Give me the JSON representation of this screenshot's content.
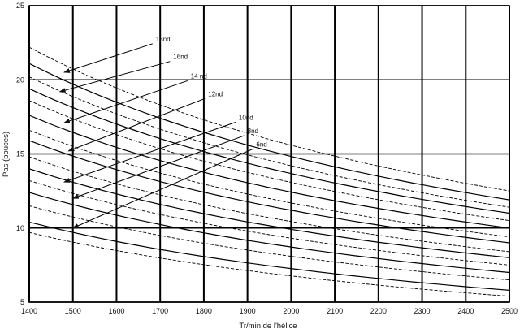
{
  "chart_data": {
    "type": "line",
    "title": "",
    "xlabel": "Tr/min de l'hélice",
    "ylabel": "Pas (pouces)",
    "xlim": [
      1400,
      2500
    ],
    "ylim": [
      5,
      25
    ],
    "xticks": [
      1400,
      1500,
      1600,
      1700,
      1800,
      1900,
      2000,
      2100,
      2200,
      2300,
      2400,
      2500
    ],
    "yticks": [
      5,
      10,
      15,
      20,
      25
    ],
    "grid": true,
    "legend": "none",
    "series": [
      {
        "values": [
          [
            1400,
            9.7
          ],
          [
            2500,
            5.4
          ]
        ],
        "style": "dashed"
      },
      {
        "values": [
          [
            1400,
            10.4
          ],
          [
            2500,
            5.8
          ]
        ],
        "style": "solid"
      },
      {
        "values": [
          [
            1400,
            11.5
          ],
          [
            2500,
            6.5
          ]
        ],
        "style": "dashed"
      },
      {
        "values": [
          [
            1400,
            12.4
          ],
          [
            2500,
            7.0
          ]
        ],
        "style": "solid"
      },
      {
        "values": [
          [
            1400,
            13.2
          ],
          [
            2500,
            7.5
          ]
        ],
        "style": "dashed"
      },
      {
        "values": [
          [
            1400,
            14.0
          ],
          [
            2500,
            8.0
          ]
        ],
        "style": "solid"
      },
      {
        "values": [
          [
            1400,
            14.8
          ],
          [
            2500,
            8.4
          ]
        ],
        "style": "dashed"
      },
      {
        "values": [
          [
            1400,
            15.9
          ],
          [
            2500,
            9.0
          ]
        ],
        "style": "solid"
      },
      {
        "values": [
          [
            1400,
            16.6
          ],
          [
            2500,
            9.4
          ]
        ],
        "style": "dashed"
      },
      {
        "values": [
          [
            1400,
            17.6
          ],
          [
            2500,
            10.0
          ]
        ],
        "style": "solid"
      },
      {
        "values": [
          [
            1400,
            18.6
          ],
          [
            2500,
            10.5
          ]
        ],
        "style": "dashed"
      },
      {
        "values": [
          [
            1400,
            19.4
          ],
          [
            2500,
            11.0
          ]
        ],
        "style": "solid"
      },
      {
        "values": [
          [
            1400,
            20.2
          ],
          [
            2500,
            11.4
          ]
        ],
        "style": "dashed"
      },
      {
        "values": [
          [
            1400,
            21.1
          ],
          [
            2500,
            11.9
          ]
        ],
        "style": "solid"
      },
      {
        "values": [
          [
            1400,
            22.2
          ],
          [
            2500,
            12.5
          ]
        ],
        "style": "dashed"
      }
    ],
    "annotations": [
      {
        "text": "18nd",
        "label_at": [
          1690,
          22.6
        ],
        "arrow_to": [
          1480,
          20.5
        ]
      },
      {
        "text": "16nd",
        "label_at": [
          1730,
          21.4
        ],
        "arrow_to": [
          1470,
          19.2
        ]
      },
      {
        "text": "14 nd",
        "label_at": [
          1770,
          20.1
        ],
        "arrow_to": [
          1480,
          17.1
        ]
      },
      {
        "text": "12nd",
        "label_at": [
          1810,
          18.9
        ],
        "arrow_to": [
          1490,
          15.2
        ]
      },
      {
        "text": "10nd",
        "label_at": [
          1880,
          17.3
        ],
        "arrow_to": [
          1480,
          13.1
        ]
      },
      {
        "text": "8nd",
        "label_at": [
          1900,
          16.4
        ],
        "arrow_to": [
          1500,
          12.0
        ]
      },
      {
        "text": "6nd",
        "label_at": [
          1920,
          15.5
        ],
        "arrow_to": [
          1500,
          10.0
        ]
      }
    ]
  }
}
